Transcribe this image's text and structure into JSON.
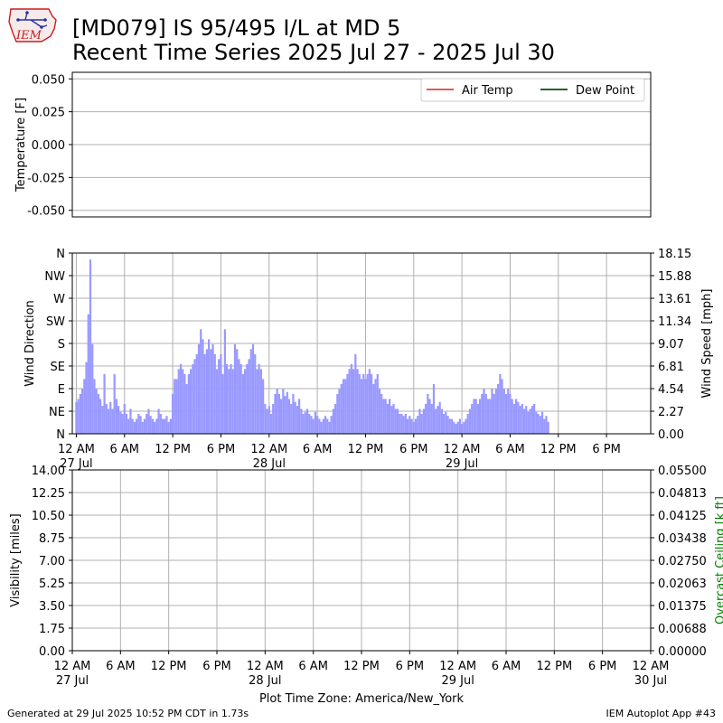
{
  "title_line1": "[MD079] IS 95/495 I/L at MD 5",
  "title_line2": "Recent Time Series 2025 Jul 27 - 2025 Jul 30",
  "logo_text": "IEM",
  "footer_left": "Generated at 29 Jul 2025 10:52 PM CDT in 1.73s",
  "footer_right": "IEM Autoplot App #43",
  "colors": {
    "air_temp": "#e05a5a",
    "dew_point": "#2e5d2e",
    "wind": "#9999ff",
    "ceiling_label": "#008000",
    "grid": "#b0b0b0"
  },
  "chart_data": [
    {
      "type": "line",
      "ylabel": "Temperature [F]",
      "ylim": [
        -0.055,
        0.055
      ],
      "yticks": [
        "0.050",
        "0.025",
        "0.000",
        "-0.025",
        "-0.050"
      ],
      "ytick_values": [
        0.05,
        0.025,
        0.0,
        -0.025,
        -0.05
      ],
      "grid": true,
      "legend": "top-right",
      "series": [
        {
          "name": "Air Temp",
          "color": "#e05a5a",
          "values": []
        },
        {
          "name": "Dew Point",
          "color": "#2e5d2e",
          "values": []
        }
      ]
    },
    {
      "type": "bar",
      "ylabel_left": "Wind Direction",
      "ylabel_right": "Wind Speed [mph]",
      "left_ticks": [
        "N",
        "NE",
        "E",
        "SE",
        "S",
        "SW",
        "W",
        "NW",
        "N"
      ],
      "right_ticks": [
        "0.00",
        "2.27",
        "4.54",
        "6.81",
        "9.07",
        "11.34",
        "13.61",
        "15.88",
        "18.15"
      ],
      "ylim": [
        0,
        18.15
      ],
      "x_range_hours": [
        -0.5,
        71.5
      ],
      "xticks": [
        "12 AM",
        "6 AM",
        "12 PM",
        "6 PM",
        "12 AM",
        "6 AM",
        "12 PM",
        "6 PM",
        "12 AM",
        "6 AM",
        "12 PM",
        "6 PM"
      ],
      "xtick_hours": [
        0,
        6,
        12,
        18,
        24,
        30,
        36,
        42,
        48,
        54,
        60,
        66
      ],
      "date_labels": [
        {
          "hour": 0,
          "label": "27 Jul"
        },
        {
          "hour": 24,
          "label": "28 Jul"
        },
        {
          "hour": 48,
          "label": "29 Jul"
        }
      ],
      "grid": true,
      "series": [
        {
          "name": "Wind Speed",
          "hour_step": 0.25,
          "values": [
            3.2,
            3.5,
            4.0,
            4.5,
            5.5,
            7.2,
            12.0,
            17.5,
            9.0,
            5.5,
            4.5,
            4.0,
            3.5,
            2.8,
            6.0,
            3.0,
            2.5,
            3.2,
            2.5,
            6.0,
            3.5,
            2.8,
            2.2,
            2.0,
            3.0,
            2.0,
            1.5,
            2.5,
            1.5,
            1.2,
            1.5,
            2.0,
            1.8,
            1.2,
            1.5,
            2.0,
            2.5,
            1.8,
            1.5,
            1.2,
            1.5,
            2.5,
            2.0,
            1.5,
            1.5,
            1.8,
            1.2,
            1.5,
            4.0,
            5.5,
            5.5,
            6.5,
            7.0,
            6.5,
            6.0,
            5.0,
            6.0,
            6.5,
            7.0,
            7.5,
            8.0,
            9.0,
            10.5,
            9.5,
            8.0,
            8.5,
            9.5,
            8.5,
            9.0,
            8.0,
            6.5,
            7.5,
            8.0,
            6.0,
            10.5,
            7.0,
            6.5,
            7.0,
            6.5,
            9.0,
            8.5,
            7.5,
            7.0,
            6.0,
            6.5,
            7.0,
            7.5,
            8.5,
            9.0,
            8.0,
            6.5,
            7.0,
            6.5,
            5.5,
            3.0,
            2.5,
            2.8,
            2.0,
            3.0,
            4.0,
            4.5,
            4.0,
            3.5,
            4.5,
            3.8,
            4.2,
            3.5,
            3.0,
            4.0,
            3.2,
            2.8,
            3.5,
            2.5,
            2.0,
            2.2,
            2.5,
            2.0,
            1.8,
            1.5,
            2.2,
            1.8,
            1.5,
            1.2,
            1.5,
            1.8,
            1.5,
            1.2,
            1.8,
            2.5,
            3.0,
            4.0,
            4.5,
            5.0,
            5.5,
            5.5,
            6.0,
            6.5,
            7.0,
            6.5,
            8.0,
            6.5,
            6.0,
            5.5,
            6.0,
            5.5,
            6.0,
            6.5,
            6.0,
            5.0,
            5.5,
            6.0,
            4.5,
            4.0,
            3.5,
            3.5,
            3.0,
            3.5,
            2.8,
            3.0,
            2.5,
            2.5,
            2.0,
            2.0,
            1.8,
            2.0,
            1.5,
            1.8,
            1.5,
            1.2,
            1.5,
            1.8,
            2.5,
            2.0,
            2.5,
            3.0,
            4.0,
            3.5,
            3.0,
            5.0,
            2.5,
            2.8,
            3.2,
            2.5,
            2.0,
            2.2,
            1.8,
            1.5,
            1.5,
            1.2,
            1.0,
            1.2,
            1.5,
            1.0,
            1.2,
            1.5,
            2.0,
            2.5,
            3.0,
            3.5,
            3.5,
            3.0,
            3.5,
            4.0,
            4.5,
            4.0,
            3.5,
            3.5,
            4.5,
            4.0,
            4.5,
            5.0,
            6.0,
            5.5,
            4.5,
            4.0,
            4.5,
            4.0,
            3.5,
            3.0,
            3.5,
            3.2,
            2.8,
            3.0,
            2.5,
            2.8,
            2.2,
            2.5,
            2.8,
            3.0,
            2.2,
            2.0,
            1.8,
            2.2,
            1.5,
            1.8,
            1.2
          ]
        }
      ]
    },
    {
      "type": "line",
      "ylabel_left": "Visibility [miles]",
      "ylabel_right": "Overcast Ceiling [k ft]",
      "left_ticks": [
        "14.00",
        "12.25",
        "10.50",
        "8.75",
        "7.00",
        "5.25",
        "3.50",
        "1.75",
        "0.00"
      ],
      "right_ticks": [
        "0.05500",
        "0.04813",
        "0.04125",
        "0.03438",
        "0.02750",
        "0.02063",
        "0.01375",
        "0.00688",
        "0.00000"
      ],
      "ylim_left": [
        0,
        14
      ],
      "ylim_right": [
        0,
        0.055
      ],
      "xticks": [
        "12 AM",
        "6 AM",
        "12 PM",
        "6 PM",
        "12 AM",
        "6 AM",
        "12 PM",
        "6 PM",
        "12 AM",
        "6 AM",
        "12 PM",
        "6 PM",
        "12 AM"
      ],
      "xtick_hours": [
        0,
        6,
        12,
        18,
        24,
        30,
        36,
        42,
        48,
        54,
        60,
        66,
        72
      ],
      "date_labels": [
        {
          "hour": 0,
          "label": "27 Jul"
        },
        {
          "hour": 24,
          "label": "28 Jul"
        },
        {
          "hour": 48,
          "label": "29 Jul"
        },
        {
          "hour": 72,
          "label": "30 Jul"
        }
      ],
      "xlabel": "Plot Time Zone: America/New_York",
      "grid": true,
      "series": []
    }
  ]
}
